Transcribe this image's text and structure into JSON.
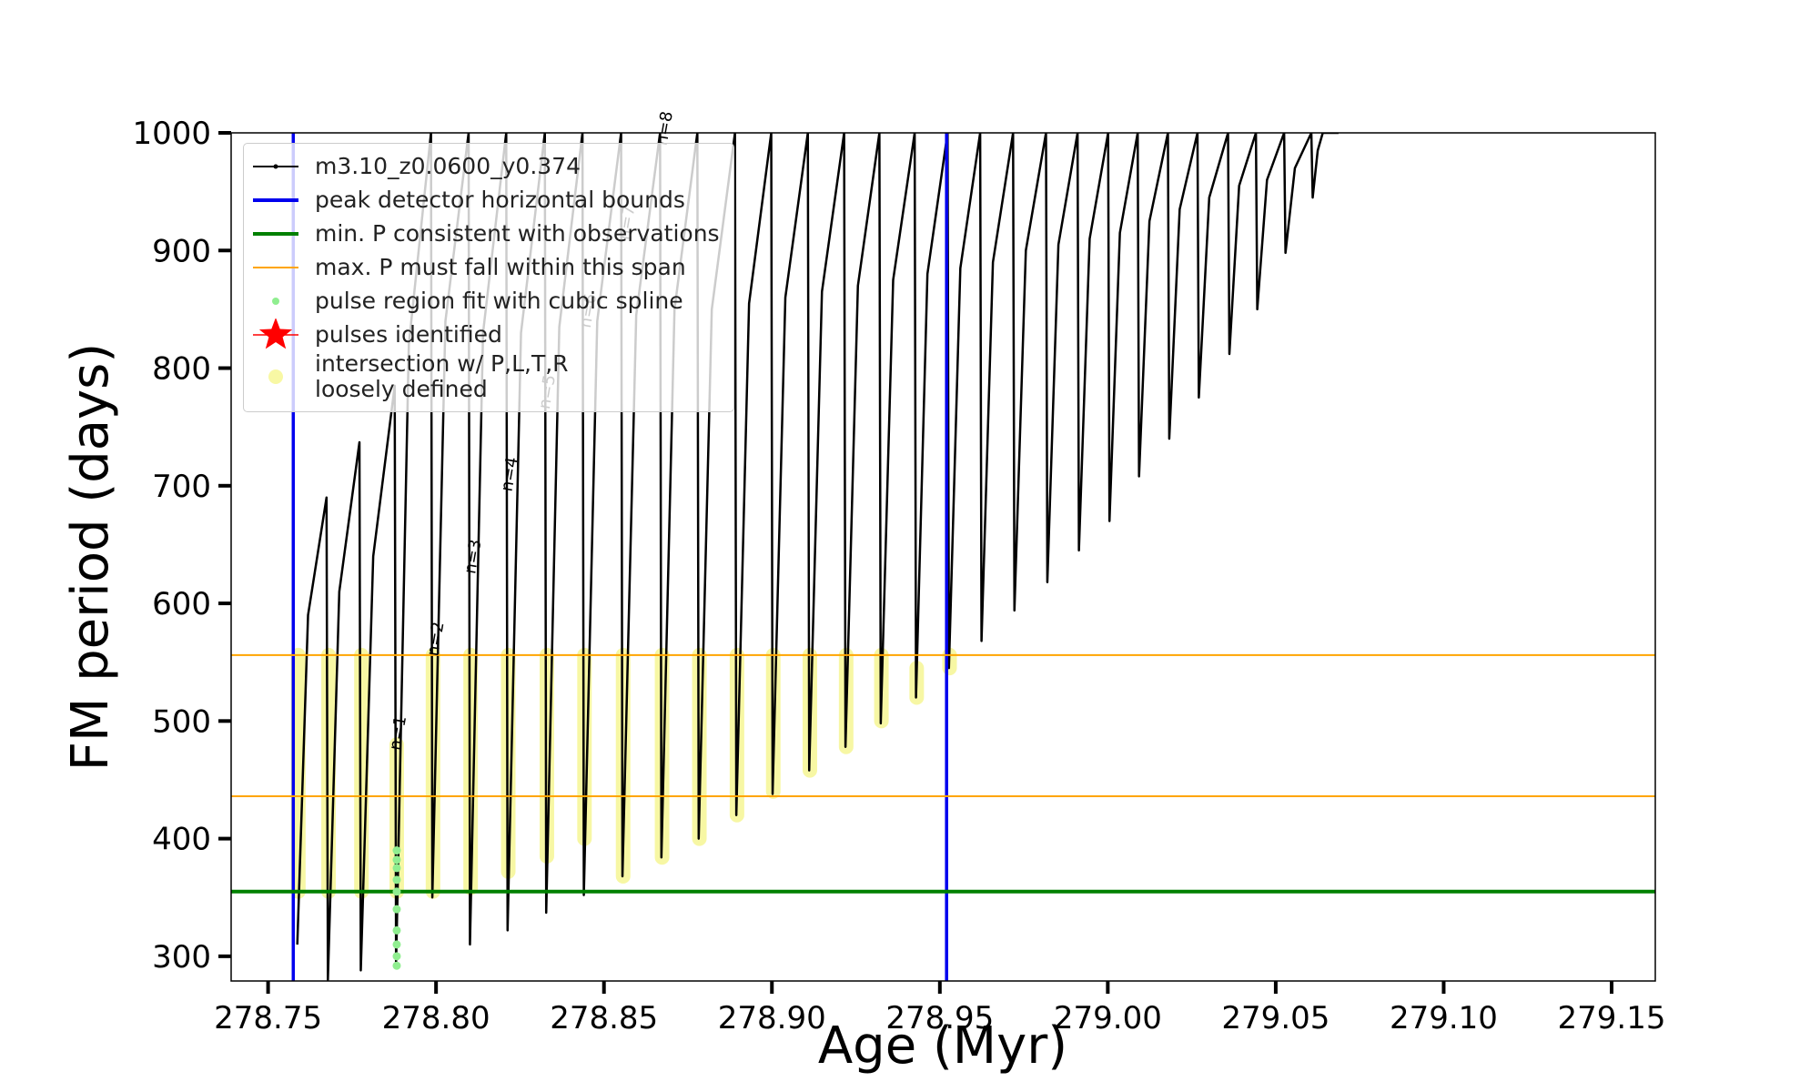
{
  "chart_data": {
    "type": "line",
    "xlabel": "Age (Myr)",
    "ylabel": "FM period (days)",
    "xlim": [
      278.739,
      279.163
    ],
    "ylim": [
      279,
      1000
    ],
    "xticks": [
      278.75,
      {
        "value": 278.8,
        "label": "278.80"
      },
      278.85,
      {
        "value": 278.9,
        "label": "278.90"
      },
      278.95,
      {
        "value": 279.0,
        "label": "279.00"
      },
      279.05,
      {
        "value": 279.1,
        "label": "279.10"
      },
      279.15
    ],
    "yticks": [
      300,
      400,
      500,
      600,
      700,
      800,
      900,
      1000
    ],
    "legend": "upper left",
    "series": [
      {
        "name": "m3.10_z0.0600_y0.374",
        "type": "line",
        "color": "#000000",
        "x": [
          278.7587,
          278.7619,
          278.7674,
          278.7678,
          278.7712,
          278.7772,
          278.7776,
          278.7813,
          278.7877,
          278.7881,
          278.7919,
          278.7985,
          278.7989,
          278.8028,
          278.8097,
          278.8101,
          278.814,
          278.8209,
          278.8213,
          278.8253,
          278.8324,
          278.8328,
          278.8367,
          278.8436,
          278.844,
          278.848,
          278.8551,
          278.8555,
          278.8596,
          278.8667,
          278.8671,
          278.871,
          278.8778,
          278.8782,
          278.8821,
          278.889,
          278.8894,
          278.8932,
          278.8998,
          278.9002,
          278.904,
          278.9107,
          278.9111,
          278.9149,
          278.9215,
          278.9219,
          278.9256,
          278.932,
          278.9324,
          278.9361,
          278.9425,
          278.9429,
          278.9463,
          278.9523,
          278.9527,
          278.9561,
          278.962,
          278.9624,
          278.9658,
          278.9718,
          278.9722,
          278.9756,
          278.9816,
          278.982,
          278.9853,
          278.991,
          278.9914,
          278.9946,
          279.0001,
          279.0005,
          279.0036,
          279.0089,
          279.0093,
          279.0124,
          279.0179,
          279.0183,
          279.0214,
          279.0267,
          279.0271,
          279.0302,
          279.0358,
          279.0362,
          279.0391,
          279.0441,
          279.0445,
          279.0474,
          279.0525,
          279.0529,
          279.0557,
          279.0606,
          279.061,
          279.0625,
          279.064,
          279.0687
        ],
        "values": [
          310,
          590,
          690,
          280,
          610,
          737,
          288,
          640,
          785,
          292,
          820,
          1000,
          350,
          840,
          1000,
          310,
          830,
          1000,
          322,
          830,
          1000,
          337,
          835,
          1000,
          352,
          840,
          1000,
          368,
          845,
          1000,
          384,
          850,
          1000,
          400,
          850,
          1000,
          420,
          855,
          1000,
          438,
          860,
          1000,
          458,
          865,
          1000,
          478,
          870,
          1000,
          498,
          875,
          1000,
          520,
          880,
          1000,
          545,
          885,
          1000,
          568,
          890,
          1000,
          594,
          900,
          1000,
          618,
          905,
          1000,
          645,
          910,
          1000,
          670,
          915,
          1000,
          708,
          925,
          1000,
          740,
          935,
          1000,
          775,
          945,
          1000,
          812,
          955,
          1000,
          850,
          960,
          1000,
          898,
          970,
          1000,
          945,
          985,
          1000,
          1000
        ]
      },
      {
        "name": "peak detector horizontal bounds",
        "type": "vline",
        "color": "#0000ee",
        "values": [
          278.7575,
          278.952
        ]
      },
      {
        "name": "min. P consistent with observations",
        "type": "hline",
        "color": "#008000",
        "values": [
          355
        ]
      },
      {
        "name": "max. P must fall within this span",
        "type": "hline",
        "color": "#ffa500",
        "values": [
          556,
          436
        ]
      },
      {
        "name": "pulse region fit with cubic spline",
        "type": "scatter",
        "marker": "dot",
        "color": "#90ee90",
        "x": [
          278.7883,
          278.7883,
          278.7883,
          278.7883,
          278.7883,
          278.7883,
          278.7883,
          278.7883,
          278.7883,
          278.7883
        ],
        "values": [
          292,
          300,
          310,
          322,
          340,
          355,
          365,
          375,
          382,
          390
        ]
      },
      {
        "name": "pulses identified",
        "type": "scatter",
        "marker": "star",
        "color": "#ff0000",
        "x": [],
        "values": []
      },
      {
        "name": "intersection w/ P,L,T,R\nloosely defined",
        "type": "range",
        "color": "#f2f25a",
        "x": [
          278.759,
          278.768,
          278.7778,
          278.7883,
          278.7991,
          278.8103,
          278.8215,
          278.833,
          278.8442,
          278.8557,
          278.8673,
          278.8784,
          278.8896,
          278.9004,
          278.9113,
          278.9221,
          278.9326,
          278.9431,
          278.9529
        ],
        "low": [
          355,
          355,
          355,
          355,
          355,
          358,
          372,
          385,
          400,
          368,
          384,
          400,
          420,
          440,
          458,
          478,
          500,
          520,
          545
        ],
        "high": [
          556,
          556,
          556,
          480,
          556,
          556,
          556,
          556,
          556,
          556,
          556,
          556,
          556,
          556,
          556,
          556,
          556,
          545,
          556
        ]
      }
    ],
    "annotations": [
      {
        "text": "n=1",
        "x": 278.7902,
        "y": 489
      },
      {
        "text": "n=2",
        "x": 278.8014,
        "y": 569
      },
      {
        "text": "n=3",
        "x": 278.8125,
        "y": 639
      },
      {
        "text": "n=4",
        "x": 278.8234,
        "y": 709
      },
      {
        "text": "n=5",
        "x": 278.8346,
        "y": 779
      },
      {
        "text": "n=6",
        "x": 278.8468,
        "y": 848
      },
      {
        "text": "n=7",
        "x": 278.8583,
        "y": 923
      },
      {
        "text": "n=8",
        "x": 278.8695,
        "y": 1003
      }
    ]
  }
}
